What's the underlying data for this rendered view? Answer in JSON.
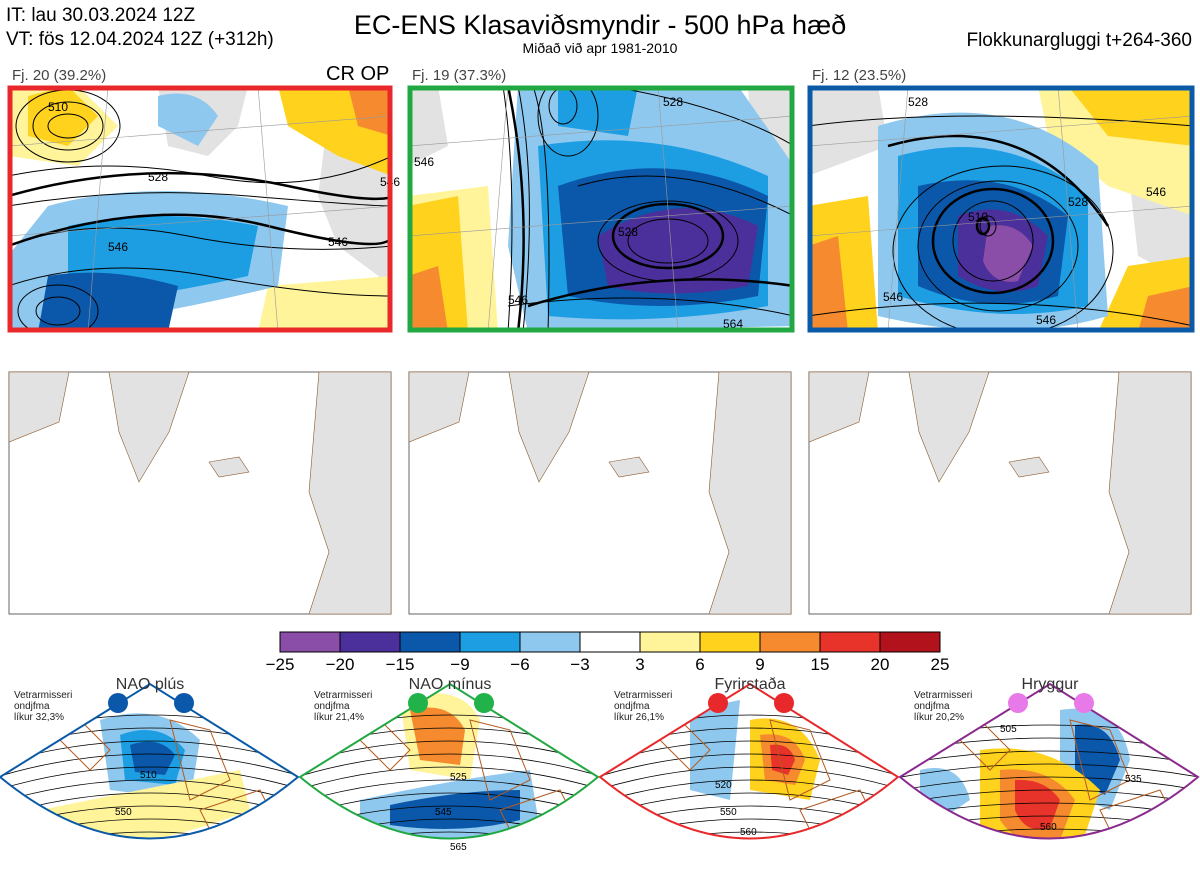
{
  "header": {
    "it_line": "IT: lau 30.03.2024 12Z",
    "vt_line": "VT: fös 12.04.2024 12Z  (+312h)",
    "title": "EC-ENS Klasaviðsmyndir - 500 hPa hæð",
    "subtitle": "Miðað við apr 1981-2010",
    "window": "Flokkunargluggi t+264-360"
  },
  "top_panels": [
    {
      "label": "Fj. 20 (39.2%)",
      "tag": "CR OP",
      "frame_color": "#e8282a",
      "contour_labels": [
        "510",
        "528",
        "546",
        "546",
        "546"
      ]
    },
    {
      "label": "Fj. 19 (37.3%)",
      "tag": "",
      "frame_color": "#22a843",
      "contour_labels": [
        "528",
        "528",
        "546",
        "546",
        "564"
      ]
    },
    {
      "label": "Fj. 12 (23.5%)",
      "tag": "",
      "frame_color": "#0a5aa8",
      "contour_labels": [
        "510",
        "528",
        "528",
        "546",
        "546",
        "546"
      ]
    }
  ],
  "colorbar": {
    "ticks": [
      "−25",
      "−20",
      "−15",
      "−9",
      "−6",
      "−3",
      "3",
      "6",
      "9",
      "15",
      "20",
      "25"
    ],
    "colors": [
      "#8a4ea8",
      "#4b2f9a",
      "#0b58aa",
      "#1d9ee3",
      "#8fc8ee",
      "#ffffff",
      "#fff49a",
      "#ffd21e",
      "#f58a2e",
      "#e8332a",
      "#b2121b"
    ]
  },
  "climate_regimes": [
    {
      "title": "NAO plús",
      "note": [
        "Vetrarmisseri",
        "ondjfma",
        "líkur 32,3%"
      ],
      "color": "#0a5aa8",
      "dot_color": "#0b58aa",
      "labels": [
        "510",
        "550"
      ]
    },
    {
      "title": "NAO mínus",
      "note": [
        "Vetrarmisseri",
        "ondjfma",
        "líkur 21,4%"
      ],
      "color": "#22a843",
      "dot_color": "#22b24a",
      "labels": [
        "525",
        "545",
        "565"
      ]
    },
    {
      "title": "Fyrirstaða",
      "note": [
        "Vetrarmisseri",
        "ondjfma",
        "líkur 26,1%"
      ],
      "color": "#e8282a",
      "dot_color": "#e8282a",
      "labels": [
        "520",
        "550",
        "560"
      ]
    },
    {
      "title": "Hryggur",
      "note": [
        "Vetrarmisseri",
        "ondjfma",
        "líkur 20,2%"
      ],
      "color": "#8b2a8e",
      "dot_color": "#e879e8",
      "labels": [
        "505",
        "535",
        "560"
      ]
    }
  ]
}
